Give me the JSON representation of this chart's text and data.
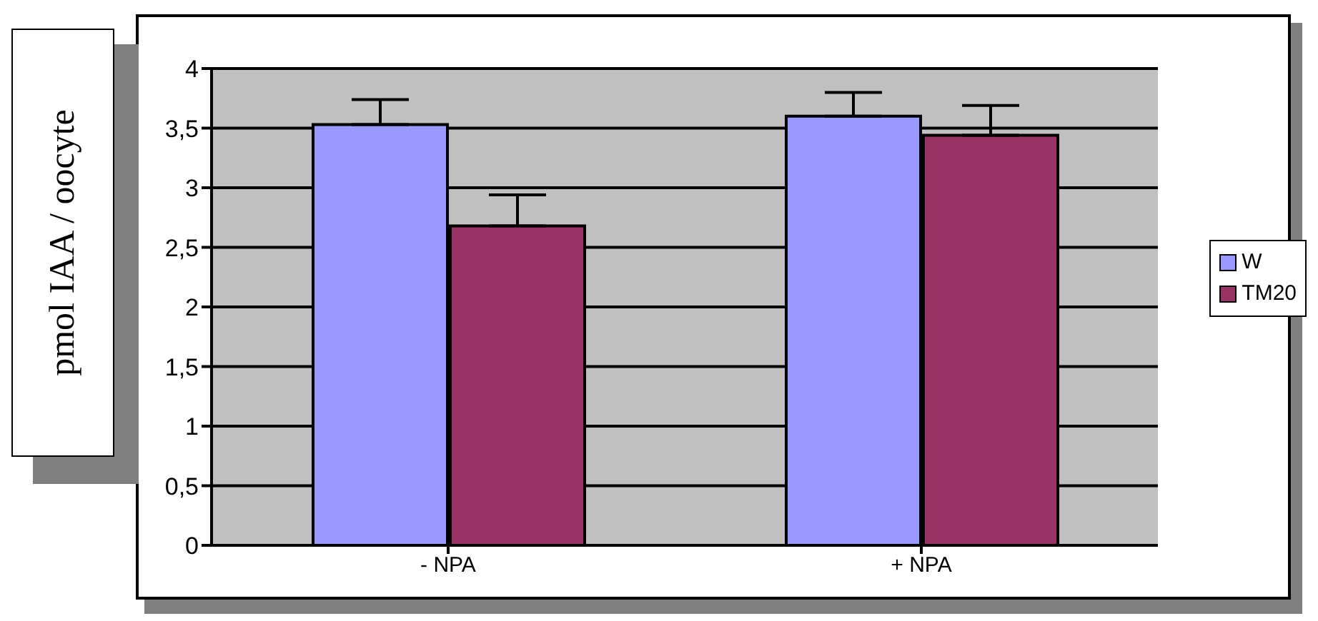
{
  "chart_data": {
    "type": "bar",
    "ylabel": "pmol IAA / oocyte",
    "categories": [
      "- NPA",
      "+ NPA"
    ],
    "series": [
      {
        "name": "W",
        "color": "#9999ff",
        "values": [
          3.53,
          3.6
        ],
        "errors": [
          [
            3.53,
            3.74
          ],
          [
            3.6,
            3.8
          ]
        ]
      },
      {
        "name": "TM20",
        "color": "#993366",
        "values": [
          2.68,
          3.44
        ],
        "errors": [
          [
            2.68,
            2.94
          ],
          [
            3.44,
            3.69
          ]
        ]
      }
    ],
    "ylim": [
      0,
      4
    ],
    "yticks": [
      0,
      {
        "value": 0.5,
        "label": "0,5"
      },
      1,
      {
        "value": 1.5,
        "label": "1,5"
      },
      2,
      {
        "value": 2.5,
        "label": "2,5"
      },
      3,
      {
        "value": 3.5,
        "label": "3,5"
      },
      4
    ],
    "grid": "y",
    "legend": "right"
  }
}
